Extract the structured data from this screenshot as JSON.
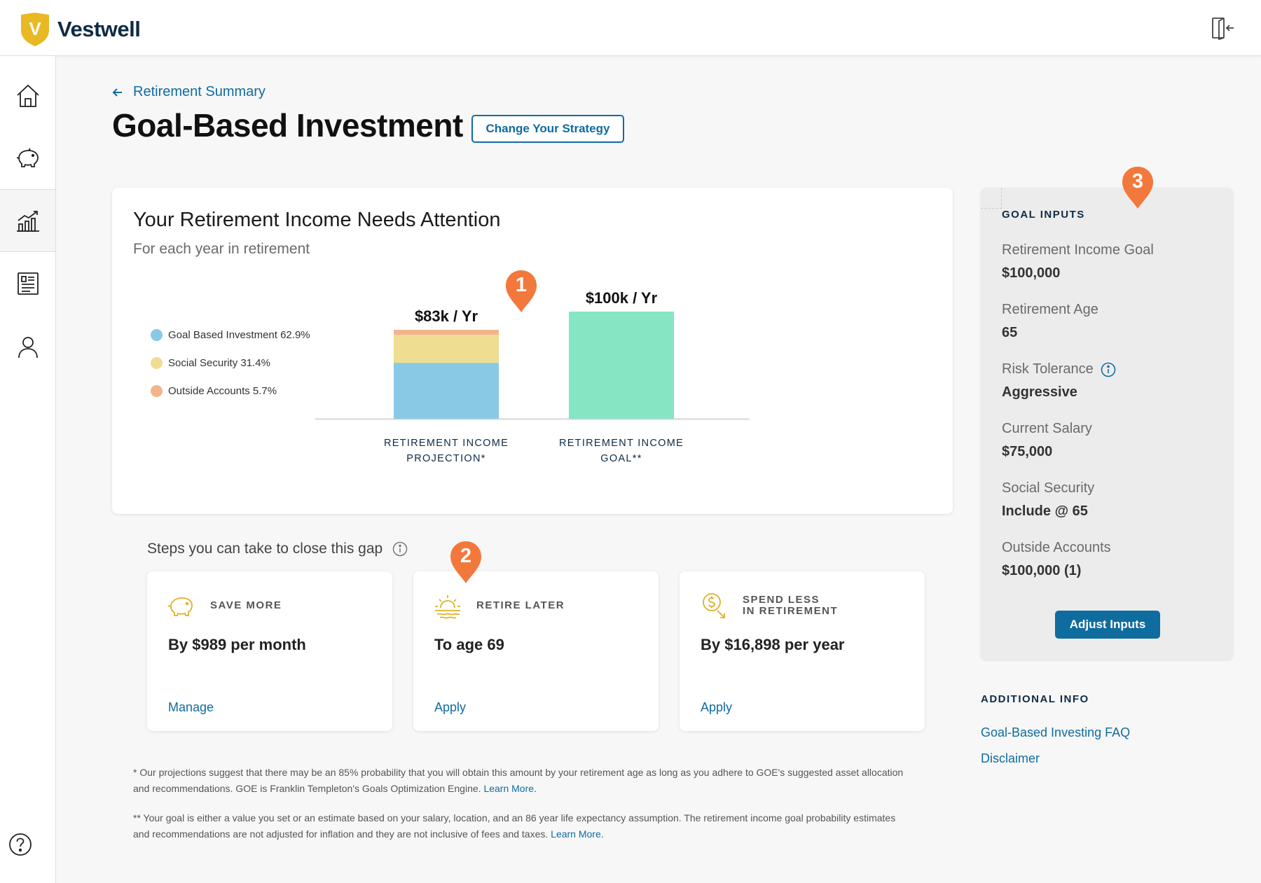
{
  "brand": {
    "name": "Vestwell",
    "letter": "V",
    "shield_color": "#e8b923",
    "text_color": "#0e2b45"
  },
  "header": {
    "exit_icon": "exit-icon"
  },
  "sidebar": {
    "items": [
      {
        "name": "home",
        "icon": "home-icon",
        "active": false
      },
      {
        "name": "savings",
        "icon": "piggy-bank-icon",
        "active": false
      },
      {
        "name": "investments",
        "icon": "growth-chart-icon",
        "active": true
      },
      {
        "name": "documents",
        "icon": "document-icon",
        "active": false
      },
      {
        "name": "profile",
        "icon": "user-icon",
        "active": false
      }
    ],
    "help_icon": "help-icon"
  },
  "breadcrumb": {
    "back_label": "Retirement Summary"
  },
  "page": {
    "title": "Goal-Based Investment",
    "strategy_button": "Change Your Strategy"
  },
  "income_card": {
    "title": "Your Retirement Income Needs Attention",
    "subtitle": "For each year in retirement",
    "legend": [
      {
        "label": "Goal Based Investment 62.9%",
        "color": "#89c9e6"
      },
      {
        "label": "Social Security 31.4%",
        "color": "#efdd92"
      },
      {
        "label": "Outside Accounts 5.7%",
        "color": "#f3b48c"
      }
    ]
  },
  "chart_data": {
    "type": "bar",
    "categories": [
      "RETIREMENT INCOME PROJECTION*",
      "RETIREMENT INCOME GOAL**"
    ],
    "category_lines": [
      [
        "RETIREMENT INCOME",
        "PROJECTION*"
      ],
      [
        "RETIREMENT INCOME",
        "GOAL**"
      ]
    ],
    "data_labels": [
      "$83k / Yr",
      "$100k / Yr"
    ],
    "units": "thousand $ per year",
    "series": [
      {
        "name": "Goal Based Investment",
        "values": [
          52.2,
          0
        ],
        "color": "#89c9e6"
      },
      {
        "name": "Social Security",
        "values": [
          26.1,
          0
        ],
        "color": "#efdd92"
      },
      {
        "name": "Outside Accounts",
        "values": [
          4.7,
          0
        ],
        "color": "#f3b48c"
      },
      {
        "values": [
          0,
          100
        ],
        "color": "#86e5c2"
      }
    ],
    "stacked": true,
    "ylim": [
      0,
      100
    ],
    "grid": false,
    "legend_position": "left"
  },
  "markers": [
    "1",
    "2",
    "3"
  ],
  "marker_color": "#f3783c",
  "steps": {
    "title": "Steps you can take to close this gap",
    "info_icon": "info-icon",
    "cards": [
      {
        "icon": "piggy-bank-icon",
        "label_lines": [
          "SAVE MORE"
        ],
        "value": "By $989 per month",
        "link": "Manage"
      },
      {
        "icon": "sunset-icon",
        "label_lines": [
          "RETIRE LATER"
        ],
        "value": "To age 69",
        "link": "Apply"
      },
      {
        "icon": "money-down-icon",
        "label_lines": [
          "SPEND LESS",
          "IN RETIREMENT"
        ],
        "value": "By $16,898 per year",
        "link": "Apply"
      }
    ]
  },
  "footnotes": [
    {
      "text": "* Our projections suggest that there may be an 85% probability that you will obtain this amount by your retirement age as long as you adhere to GOE's suggested asset allocation and recommendations. GOE is Franklin Templeton's Goals Optimization Engine.",
      "link": "Learn More."
    },
    {
      "text": "** Your goal is either a value you set or an estimate based on your salary, location, and an 86 year life expectancy assumption. The retirement income goal probability estimates and recommendations are not adjusted for inflation and they are not inclusive of fees and taxes.",
      "link": "Learn More."
    }
  ],
  "goal_inputs": {
    "title": "GOAL INPUTS",
    "items": [
      {
        "label": "Retirement Income Goal",
        "value": "$100,000"
      },
      {
        "label": "Retirement Age",
        "value": "65"
      },
      {
        "label": "Risk Tolerance",
        "value": "Aggressive",
        "info_icon": "info-icon"
      },
      {
        "label": "Current Salary",
        "value": "$75,000"
      },
      {
        "label": "Social Security",
        "value": "Include @ 65"
      },
      {
        "label": "Outside Accounts",
        "value": "$100,000 (1)"
      }
    ],
    "button": "Adjust Inputs"
  },
  "additional_info": {
    "title": "ADDITIONAL INFO",
    "links": [
      "Goal-Based Investing FAQ",
      "Disclaimer"
    ]
  },
  "colors": {
    "accent": "#0f6c9f",
    "navy": "#0e2b45"
  }
}
